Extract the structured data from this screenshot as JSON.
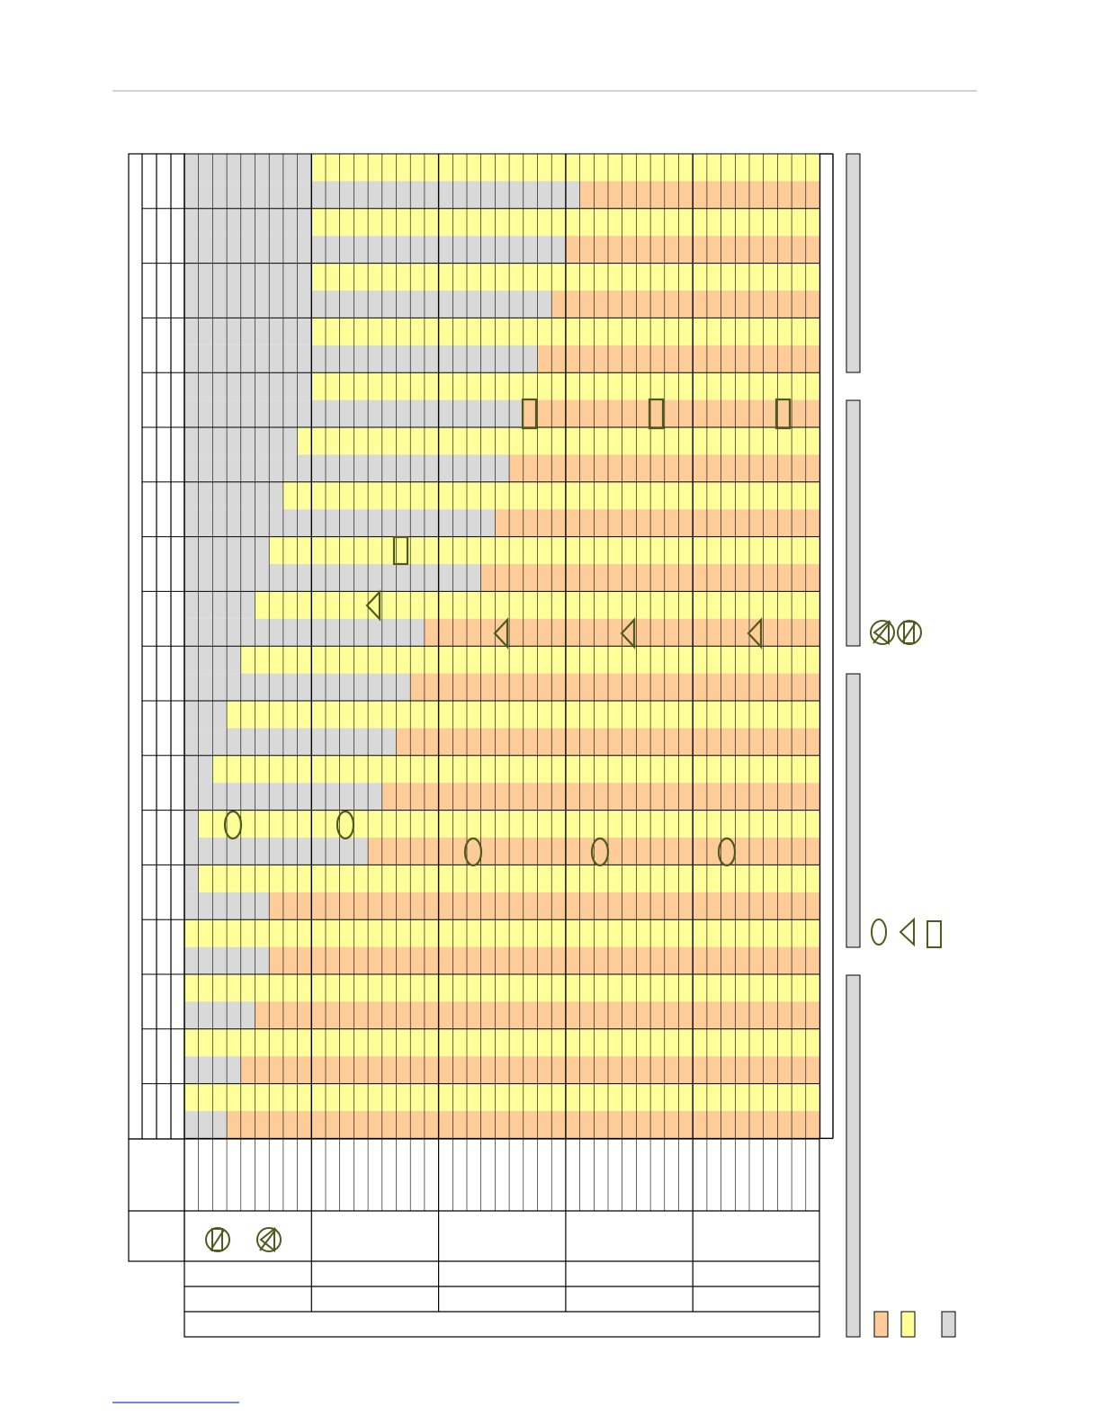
{
  "colors": {
    "grey": "#d9d9d9",
    "yellow": "#ffff99",
    "orange": "#fdcc99",
    "grid_line": "#000000",
    "marker_stroke": "#4f5a1c",
    "rule": "#a6a6a6",
    "footer_link": "#1f3fd0"
  },
  "legend_icons": [
    "orange-swatch",
    "yellow-swatch",
    "grey-swatch"
  ],
  "marker_icons": [
    "ellipse-marker-icon",
    "triangle-marker-icon",
    "rectangle-marker-icon",
    "circle-slash-marker-icon",
    "circle-triangle-marker-icon"
  ],
  "grid": {
    "column_groups": 5,
    "columns_per_group": 9,
    "row_pairs": 18
  },
  "boundaries": {
    "grey_before_yellow_upper": [
      9,
      9,
      9,
      9,
      9,
      8,
      7,
      6,
      5,
      4,
      3,
      2,
      1,
      1,
      0,
      0,
      0,
      0,
      0
    ],
    "grey_before_orange_lower": [
      28,
      27,
      26,
      25,
      24,
      23,
      22,
      21,
      17,
      16,
      15,
      14,
      13,
      6,
      6,
      5,
      4,
      3
    ]
  }
}
